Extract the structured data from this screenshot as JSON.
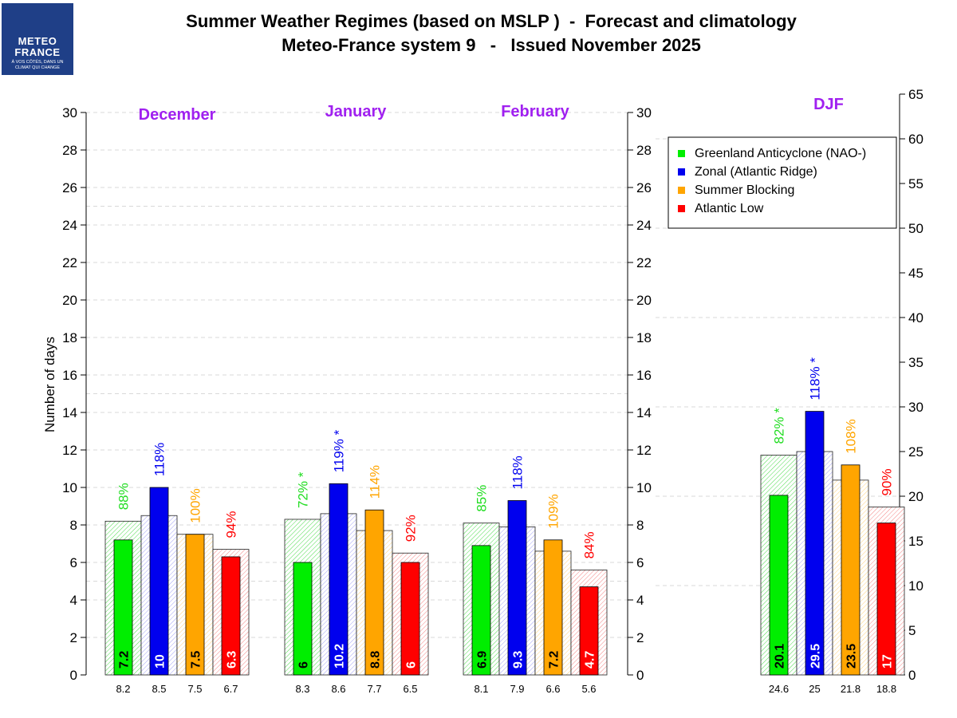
{
  "header": {
    "title_line1": "Summer Weather Regimes (based on MSLP )  -  Forecast and climatology",
    "title_line2": "Meteo-France system 9   -   Issued November 2025"
  },
  "logo": {
    "line1": "METEO",
    "line2": "FRANCE",
    "tagline": "À VOS CÔTÉS, DANS UN CLIMAT QUI CHANGE",
    "bg_color": "#1f3f87"
  },
  "chart_data": {
    "type": "bar",
    "ylabel": "Number of days",
    "y_left_lim": [
      0,
      30
    ],
    "y_left_ticks": [
      0,
      2,
      4,
      6,
      8,
      10,
      12,
      14,
      16,
      18,
      20,
      22,
      24,
      26,
      28,
      30
    ],
    "y_right_lim": [
      0,
      65
    ],
    "y_right_ticks": [
      0,
      5,
      10,
      15,
      20,
      25,
      30,
      35,
      40,
      45,
      50,
      55,
      60,
      65
    ],
    "regimes": [
      {
        "name": "Greenland Anticyclone (NAO-)",
        "color": "#00ee00",
        "text_color": "#000000"
      },
      {
        "name": "Zonal (Atlantic Ridge)",
        "color": "#0000ee",
        "text_color": "#ffffff"
      },
      {
        "name": "Summer Blocking",
        "color": "#ffa500",
        "text_color": "#000000"
      },
      {
        "name": "Atlantic Low",
        "color": "#ff0000",
        "text_color": "#ffffff"
      }
    ],
    "panels": [
      {
        "title": "December",
        "axis": "left",
        "forecast": [
          "7.2",
          "10",
          "7.5",
          "6.3"
        ],
        "climatology": [
          "8.2",
          "8.5",
          "7.5",
          "6.7"
        ],
        "percent": [
          "88%",
          "118%",
          "100%",
          "94%"
        ]
      },
      {
        "title": "January",
        "axis": "left",
        "forecast": [
          "6",
          "10.2",
          "8.8",
          "6"
        ],
        "climatology": [
          "8.3",
          "8.6",
          "7.7",
          "6.5"
        ],
        "percent": [
          "72% *",
          "119% *",
          "114%",
          "92%"
        ]
      },
      {
        "title": "February",
        "axis": "left",
        "forecast": [
          "6.9",
          "9.3",
          "7.2",
          "4.7"
        ],
        "climatology": [
          "8.1",
          "7.9",
          "6.6",
          "5.6"
        ],
        "percent": [
          "85%",
          "118%",
          "109%",
          "84%"
        ]
      },
      {
        "title": "DJF",
        "axis": "right",
        "forecast": [
          "20.1",
          "29.5",
          "23.5",
          "17"
        ],
        "climatology": [
          "24.6",
          "25",
          "21.8",
          "18.8"
        ],
        "percent": [
          "82% *",
          "118% *",
          "108%",
          "90%"
        ]
      }
    ]
  }
}
